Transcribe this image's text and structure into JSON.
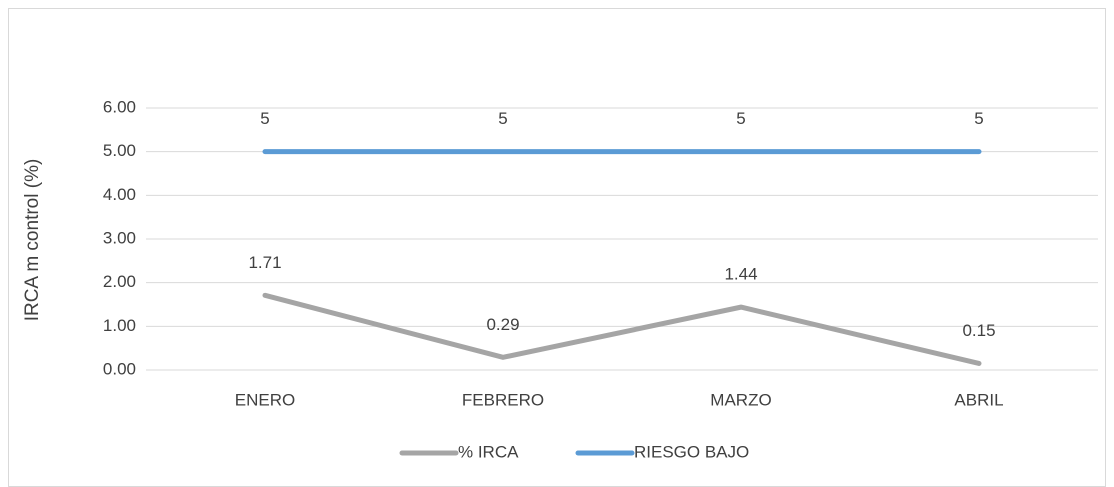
{
  "chart_data": {
    "type": "line",
    "y_label": "IRCA m control (%)",
    "categories": [
      "ENERO",
      "FEBRERO",
      "MARZO",
      "ABRIL"
    ],
    "series": [
      {
        "name": "% IRCA",
        "color": "#a5a5a5",
        "values": [
          1.71,
          0.29,
          1.44,
          0.15
        ]
      },
      {
        "name": "RIESGO BAJO",
        "color": "#5b9bd5",
        "values": [
          5,
          5,
          5,
          5
        ]
      }
    ],
    "ylim": [
      0,
      6
    ],
    "yticks": [
      {
        "value": 0,
        "label": "0.00"
      },
      {
        "value": 1,
        "label": "1.00"
      },
      {
        "value": 2,
        "label": "2.00"
      },
      {
        "value": 3,
        "label": "3.00"
      },
      {
        "value": 4,
        "label": "4.00"
      },
      {
        "value": 5,
        "label": "5.00"
      },
      {
        "value": 6,
        "label": "6.00"
      }
    ],
    "grid": true,
    "legend": "bottom"
  }
}
